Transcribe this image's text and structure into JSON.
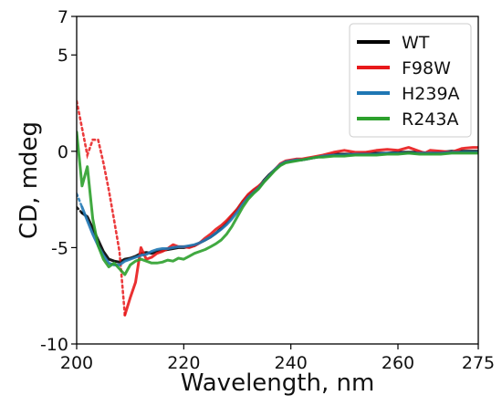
{
  "chart_data": {
    "type": "line",
    "xlabel": "Wavelength, nm",
    "ylabel": "CD, mdeg",
    "xlim": [
      200,
      275
    ],
    "ylim": [
      -10,
      7
    ],
    "xticks": [
      200,
      220,
      240,
      260,
      275
    ],
    "yticks": [
      -10,
      -5,
      0,
      5,
      7
    ],
    "grid": false,
    "legend_position": "top-right",
    "series": [
      {
        "name": "WT",
        "color": "#000000",
        "dotted_below": 201.5,
        "points": [
          [
            200,
            -2.9
          ],
          [
            201,
            -3.2
          ],
          [
            202,
            -3.4
          ],
          [
            203,
            -4.0
          ],
          [
            204,
            -4.6
          ],
          [
            205,
            -5.2
          ],
          [
            206,
            -5.6
          ],
          [
            207,
            -5.7
          ],
          [
            208,
            -5.75
          ],
          [
            209,
            -5.6
          ],
          [
            210,
            -5.55
          ],
          [
            211,
            -5.45
          ],
          [
            212,
            -5.3
          ],
          [
            213,
            -5.25
          ],
          [
            214,
            -5.3
          ],
          [
            215,
            -5.2
          ],
          [
            216,
            -5.15
          ],
          [
            217,
            -5.1
          ],
          [
            218,
            -5.05
          ],
          [
            219,
            -5.0
          ],
          [
            220,
            -5.0
          ],
          [
            221,
            -4.95
          ],
          [
            222,
            -4.9
          ],
          [
            223,
            -4.75
          ],
          [
            224,
            -4.6
          ],
          [
            225,
            -4.45
          ],
          [
            226,
            -4.25
          ],
          [
            227,
            -4.0
          ],
          [
            228,
            -3.7
          ],
          [
            229,
            -3.35
          ],
          [
            230,
            -3.0
          ],
          [
            231,
            -2.6
          ],
          [
            232,
            -2.3
          ],
          [
            233,
            -2.05
          ],
          [
            234,
            -1.85
          ],
          [
            235,
            -1.5
          ],
          [
            236,
            -1.2
          ],
          [
            237,
            -0.95
          ],
          [
            238,
            -0.7
          ],
          [
            239,
            -0.55
          ],
          [
            240,
            -0.5
          ],
          [
            241,
            -0.45
          ],
          [
            242,
            -0.45
          ],
          [
            243,
            -0.4
          ],
          [
            244,
            -0.35
          ],
          [
            245,
            -0.3
          ],
          [
            246,
            -0.25
          ],
          [
            247,
            -0.2
          ],
          [
            248,
            -0.15
          ],
          [
            250,
            -0.15
          ],
          [
            252,
            -0.15
          ],
          [
            254,
            -0.1
          ],
          [
            256,
            -0.1
          ],
          [
            258,
            -0.1
          ],
          [
            260,
            -0.05
          ],
          [
            262,
            -0.05
          ],
          [
            264,
            -0.05
          ],
          [
            266,
            -0.1
          ],
          [
            268,
            -0.05
          ],
          [
            270,
            0.0
          ],
          [
            272,
            0.0
          ],
          [
            275,
            0.0
          ]
        ]
      },
      {
        "name": "F98W",
        "color": "#e8191b",
        "dotted_below": 209.5,
        "points": [
          [
            200,
            2.6
          ],
          [
            201,
            1.2
          ],
          [
            202,
            -0.2
          ],
          [
            203,
            0.6
          ],
          [
            204,
            0.6
          ],
          [
            205,
            -0.6
          ],
          [
            206,
            -2.0
          ],
          [
            207,
            -3.6
          ],
          [
            208,
            -5.2
          ],
          [
            209,
            -8.5
          ],
          [
            210,
            -7.6
          ],
          [
            211,
            -6.8
          ],
          [
            212,
            -5.0
          ],
          [
            213,
            -5.6
          ],
          [
            214,
            -5.5
          ],
          [
            215,
            -5.3
          ],
          [
            216,
            -5.2
          ],
          [
            217,
            -5.05
          ],
          [
            218,
            -4.85
          ],
          [
            219,
            -4.95
          ],
          [
            220,
            -4.95
          ],
          [
            221,
            -5.0
          ],
          [
            222,
            -4.9
          ],
          [
            223,
            -4.75
          ],
          [
            224,
            -4.5
          ],
          [
            225,
            -4.3
          ],
          [
            226,
            -4.05
          ],
          [
            227,
            -3.85
          ],
          [
            228,
            -3.6
          ],
          [
            229,
            -3.3
          ],
          [
            230,
            -3.0
          ],
          [
            231,
            -2.6
          ],
          [
            232,
            -2.25
          ],
          [
            233,
            -2.0
          ],
          [
            234,
            -1.8
          ],
          [
            235,
            -1.55
          ],
          [
            236,
            -1.25
          ],
          [
            237,
            -0.95
          ],
          [
            238,
            -0.65
          ],
          [
            239,
            -0.5
          ],
          [
            240,
            -0.45
          ],
          [
            241,
            -0.4
          ],
          [
            242,
            -0.4
          ],
          [
            243,
            -0.35
          ],
          [
            244,
            -0.3
          ],
          [
            246,
            -0.2
          ],
          [
            248,
            -0.05
          ],
          [
            250,
            0.05
          ],
          [
            251,
            0.0
          ],
          [
            252,
            -0.05
          ],
          [
            254,
            -0.05
          ],
          [
            256,
            0.05
          ],
          [
            258,
            0.1
          ],
          [
            260,
            0.05
          ],
          [
            262,
            0.2
          ],
          [
            264,
            0.0
          ],
          [
            265,
            -0.1
          ],
          [
            266,
            0.05
          ],
          [
            268,
            0.0
          ],
          [
            270,
            -0.05
          ],
          [
            272,
            0.15
          ],
          [
            274,
            0.2
          ],
          [
            275,
            0.2
          ]
        ]
      },
      {
        "name": "H239A",
        "color": "#1f77b4",
        "dotted_below": 201.5,
        "points": [
          [
            200,
            -2.2
          ],
          [
            201,
            -2.9
          ],
          [
            202,
            -3.6
          ],
          [
            203,
            -4.3
          ],
          [
            204,
            -4.9
          ],
          [
            205,
            -5.4
          ],
          [
            206,
            -5.8
          ],
          [
            207,
            -5.9
          ],
          [
            208,
            -5.9
          ],
          [
            209,
            -5.7
          ],
          [
            210,
            -5.6
          ],
          [
            211,
            -5.5
          ],
          [
            212,
            -5.4
          ],
          [
            213,
            -5.35
          ],
          [
            214,
            -5.2
          ],
          [
            215,
            -5.1
          ],
          [
            216,
            -5.05
          ],
          [
            217,
            -5.05
          ],
          [
            218,
            -5.0
          ],
          [
            219,
            -4.95
          ],
          [
            220,
            -4.95
          ],
          [
            221,
            -4.9
          ],
          [
            222,
            -4.85
          ],
          [
            223,
            -4.75
          ],
          [
            224,
            -4.6
          ],
          [
            225,
            -4.45
          ],
          [
            226,
            -4.25
          ],
          [
            227,
            -4.05
          ],
          [
            228,
            -3.8
          ],
          [
            229,
            -3.5
          ],
          [
            230,
            -3.15
          ],
          [
            231,
            -2.75
          ],
          [
            232,
            -2.4
          ],
          [
            233,
            -2.15
          ],
          [
            234,
            -1.9
          ],
          [
            235,
            -1.55
          ],
          [
            236,
            -1.25
          ],
          [
            237,
            -0.95
          ],
          [
            238,
            -0.7
          ],
          [
            239,
            -0.55
          ],
          [
            240,
            -0.5
          ],
          [
            241,
            -0.45
          ],
          [
            242,
            -0.45
          ],
          [
            243,
            -0.4
          ],
          [
            244,
            -0.35
          ],
          [
            245,
            -0.3
          ],
          [
            246,
            -0.25
          ],
          [
            248,
            -0.2
          ],
          [
            250,
            -0.2
          ],
          [
            252,
            -0.15
          ],
          [
            254,
            -0.15
          ],
          [
            256,
            -0.15
          ],
          [
            258,
            -0.1
          ],
          [
            260,
            -0.1
          ],
          [
            262,
            -0.1
          ],
          [
            264,
            -0.1
          ],
          [
            266,
            -0.1
          ],
          [
            268,
            -0.1
          ],
          [
            270,
            -0.05
          ],
          [
            272,
            -0.05
          ],
          [
            275,
            -0.05
          ]
        ]
      },
      {
        "name": "R243A",
        "color": "#2ca02c",
        "dotted_below": 200.5,
        "points": [
          [
            200,
            1.0
          ],
          [
            201,
            -1.8
          ],
          [
            202,
            -0.8
          ],
          [
            203,
            -3.5
          ],
          [
            204,
            -4.9
          ],
          [
            205,
            -5.6
          ],
          [
            206,
            -6.0
          ],
          [
            207,
            -5.8
          ],
          [
            208,
            -6.1
          ],
          [
            209,
            -6.4
          ],
          [
            210,
            -5.9
          ],
          [
            211,
            -5.7
          ],
          [
            212,
            -5.6
          ],
          [
            213,
            -5.7
          ],
          [
            214,
            -5.8
          ],
          [
            215,
            -5.8
          ],
          [
            216,
            -5.75
          ],
          [
            217,
            -5.65
          ],
          [
            218,
            -5.7
          ],
          [
            219,
            -5.55
          ],
          [
            220,
            -5.6
          ],
          [
            221,
            -5.45
          ],
          [
            222,
            -5.3
          ],
          [
            223,
            -5.2
          ],
          [
            224,
            -5.1
          ],
          [
            225,
            -4.95
          ],
          [
            226,
            -4.8
          ],
          [
            227,
            -4.6
          ],
          [
            228,
            -4.3
          ],
          [
            229,
            -3.9
          ],
          [
            230,
            -3.4
          ],
          [
            231,
            -2.9
          ],
          [
            232,
            -2.5
          ],
          [
            233,
            -2.2
          ],
          [
            234,
            -1.95
          ],
          [
            235,
            -1.6
          ],
          [
            236,
            -1.3
          ],
          [
            237,
            -1.0
          ],
          [
            238,
            -0.75
          ],
          [
            239,
            -0.6
          ],
          [
            240,
            -0.55
          ],
          [
            241,
            -0.5
          ],
          [
            242,
            -0.45
          ],
          [
            243,
            -0.4
          ],
          [
            244,
            -0.35
          ],
          [
            245,
            -0.3
          ],
          [
            246,
            -0.3
          ],
          [
            248,
            -0.25
          ],
          [
            250,
            -0.25
          ],
          [
            252,
            -0.2
          ],
          [
            254,
            -0.2
          ],
          [
            256,
            -0.2
          ],
          [
            258,
            -0.15
          ],
          [
            260,
            -0.15
          ],
          [
            262,
            -0.1
          ],
          [
            264,
            -0.15
          ],
          [
            266,
            -0.15
          ],
          [
            268,
            -0.15
          ],
          [
            270,
            -0.1
          ],
          [
            272,
            -0.1
          ],
          [
            275,
            -0.1
          ]
        ]
      }
    ]
  }
}
